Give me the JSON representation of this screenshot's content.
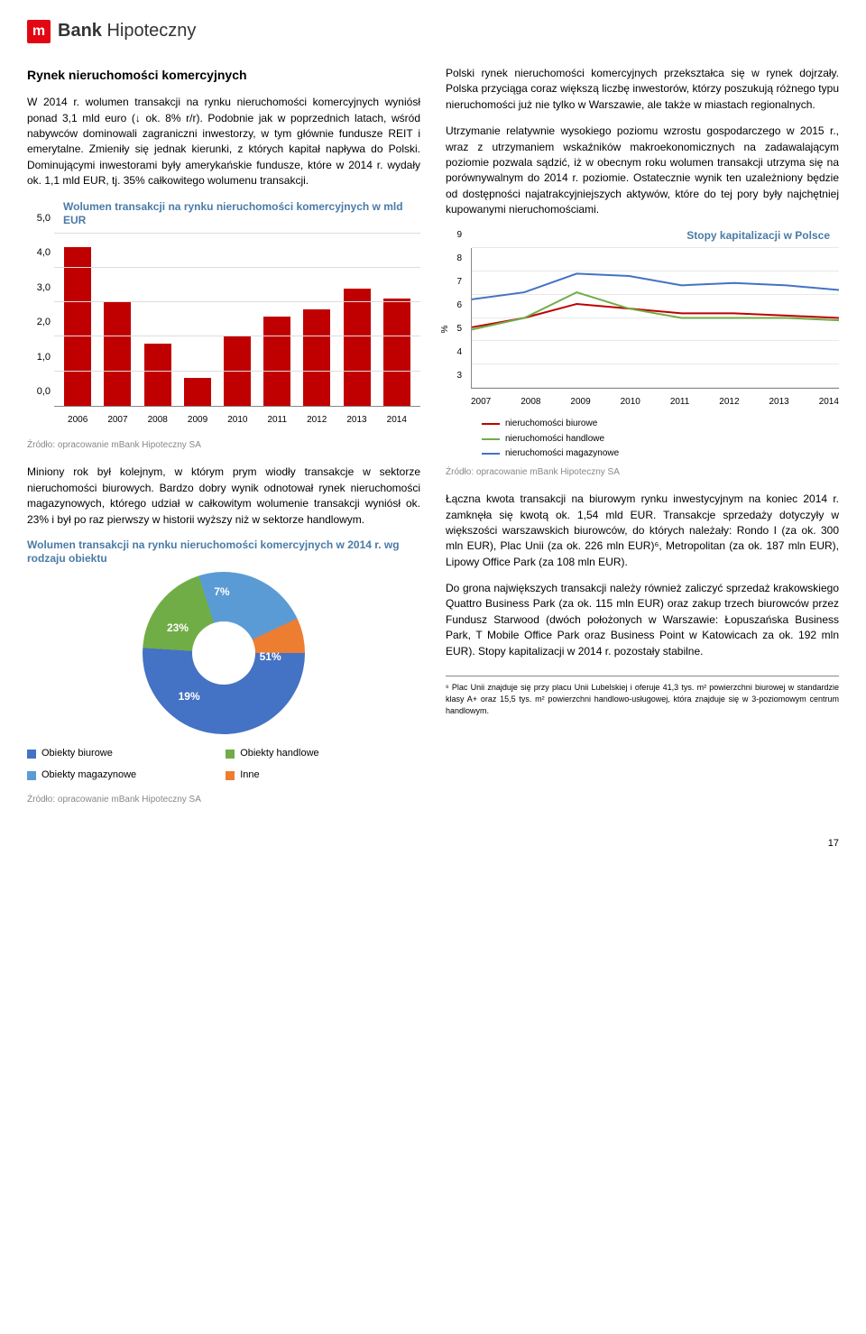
{
  "logo": {
    "m": "m",
    "bank": "Bank",
    "hipo": " Hipoteczny"
  },
  "left": {
    "title": "Rynek nieruchomości komercyjnych",
    "p1": "W 2014 r. wolumen transakcji na rynku nieruchomości komercyjnych wyniósł ponad 3,1 mld euro (↓ ok. 8% r/r). Podobnie jak w poprzednich latach, wśród nabywców dominowali zagraniczni inwestorzy, w tym głównie fundusze REIT i emerytalne. Zmieniły się jednak kierunki, z których kapitał napływa do Polski. Dominującymi inwestorami były amerykańskie fundusze, które w 2014 r. wydały ok. 1,1 mld EUR, tj. 35% całkowitego wolumenu transakcji.",
    "barChart": {
      "title": "Wolumen transakcji na rynku nieruchomości komercyjnych w mld EUR",
      "type": "bar",
      "categories": [
        "2006",
        "2007",
        "2008",
        "2009",
        "2010",
        "2011",
        "2012",
        "2013",
        "2014"
      ],
      "values": [
        4.6,
        3.0,
        1.8,
        0.8,
        2.0,
        2.6,
        2.8,
        3.4,
        3.1
      ],
      "bar_color": "#c00000",
      "ylim": [
        0,
        5
      ],
      "yticks": [
        "0,0",
        "1,0",
        "2,0",
        "3,0",
        "4,0",
        "5,0"
      ],
      "grid_color": "#dddddd",
      "source": "Źródło: opracowanie mBank Hipoteczny SA"
    },
    "p2": "Miniony rok był kolejnym, w którym prym wiodły transakcje w sektorze nieruchomości biurowych. Bardzo dobry wynik odnotował rynek nieruchomości magazynowych, którego udział w całkowitym wolumenie transakcji wyniósł ok. 23% i był po raz pierwszy w historii wyższy niż w sektorze handlowym.",
    "donut": {
      "title": "Wolumen transakcji na rynku nieruchomości komercyjnych w 2014 r. wg rodzaju obiektu",
      "type": "pie",
      "slices": [
        {
          "label": "Obiekty biurowe",
          "value": 51,
          "color": "#4472c4"
        },
        {
          "label": "Obiekty handlowe",
          "value": 19,
          "color": "#70ad47"
        },
        {
          "label": "Obiekty magazynowe",
          "value": 23,
          "color": "#5b9bd5"
        },
        {
          "label": "Inne",
          "value": 7,
          "color": "#ed7d31"
        }
      ],
      "labels_on_chart": [
        "51%",
        "19%",
        "23%",
        "7%"
      ],
      "source": "Źródło: opracowanie mBank Hipoteczny SA"
    }
  },
  "right": {
    "p1": "Polski rynek nieruchomości komercyjnych przekształca się w rynek dojrzały. Polska przyciąga coraz większą liczbę inwestorów, którzy poszukują różnego typu nieruchomości już nie tylko w Warszawie, ale także w miastach regionalnych.",
    "p2": "Utrzymanie relatywnie wysokiego poziomu wzrostu gospodarczego w 2015 r., wraz z utrzymaniem wskaźników makroekonomicznych na zadawalającym poziomie pozwala sądzić, iż w obecnym roku wolumen transakcji utrzyma się na porównywalnym do 2014 r. poziomie. Ostatecznie wynik ten uzależniony będzie od dostępności najatrakcyjniejszych aktywów, które do tej pory były najchętniej kupowanymi nieruchomościami.",
    "lineChart": {
      "title": "Stopy kapitalizacji w Polsce",
      "type": "line",
      "ylabel": "%",
      "ylim": [
        3,
        9
      ],
      "yticks": [
        3,
        4,
        5,
        6,
        7,
        8,
        9
      ],
      "x": [
        "2007",
        "2008",
        "2009",
        "2010",
        "2011",
        "2012",
        "2013",
        "2014"
      ],
      "series": [
        {
          "name": "nieruchomości biurowe",
          "color": "#c00000",
          "values": [
            5.6,
            6.0,
            6.6,
            6.4,
            6.2,
            6.2,
            6.1,
            6.0
          ]
        },
        {
          "name": "nieruchomości handlowe",
          "color": "#70ad47",
          "values": [
            5.5,
            6.0,
            7.1,
            6.4,
            6.0,
            6.0,
            6.0,
            5.9
          ]
        },
        {
          "name": "nieruchomości magazynowe",
          "color": "#4472c4",
          "values": [
            6.8,
            7.1,
            7.9,
            7.8,
            7.4,
            7.5,
            7.4,
            7.2
          ]
        }
      ],
      "grid_color": "#e8e8e8",
      "source": "Źródło: opracowanie mBank Hipoteczny SA"
    },
    "p3": "Łączna kwota transakcji na biurowym rynku inwestycyjnym na koniec 2014 r. zamknęła się kwotą ok. 1,54 mld EUR. Transakcje sprzedaży dotyczyły w większości warszawskich biurowców, do których należały: Rondo I (za ok. 300 mln EUR), Plac Unii (za ok. 226 mln EUR)⁶, Metropolitan (za ok. 187 mln EUR), Lipowy Office Park (za 108 mln EUR).",
    "p4": "Do grona największych transakcji należy również zaliczyć sprzedaż krakowskiego Quattro Business Park (za ok. 115 mln EUR) oraz zakup trzech biurowców przez Fundusz Starwood (dwóch położonych w Warszawie: Łopuszańska Business Park, T Mobile Office Park oraz Business Point w Katowicach za ok. 192 mln EUR). Stopy kapitalizacji w 2014 r. pozostały stabilne.",
    "footnote": "⁶ Plac Unii znajduje się przy placu Unii Lubelskiej i oferuje 41,3 tys. m² powierzchni biurowej w standardzie klasy A+ oraz 15,5 tys. m² powierzchni handlowo-usługowej, która znajduje się w 3-poziomowym centrum handlowym."
  },
  "pageNum": "17"
}
